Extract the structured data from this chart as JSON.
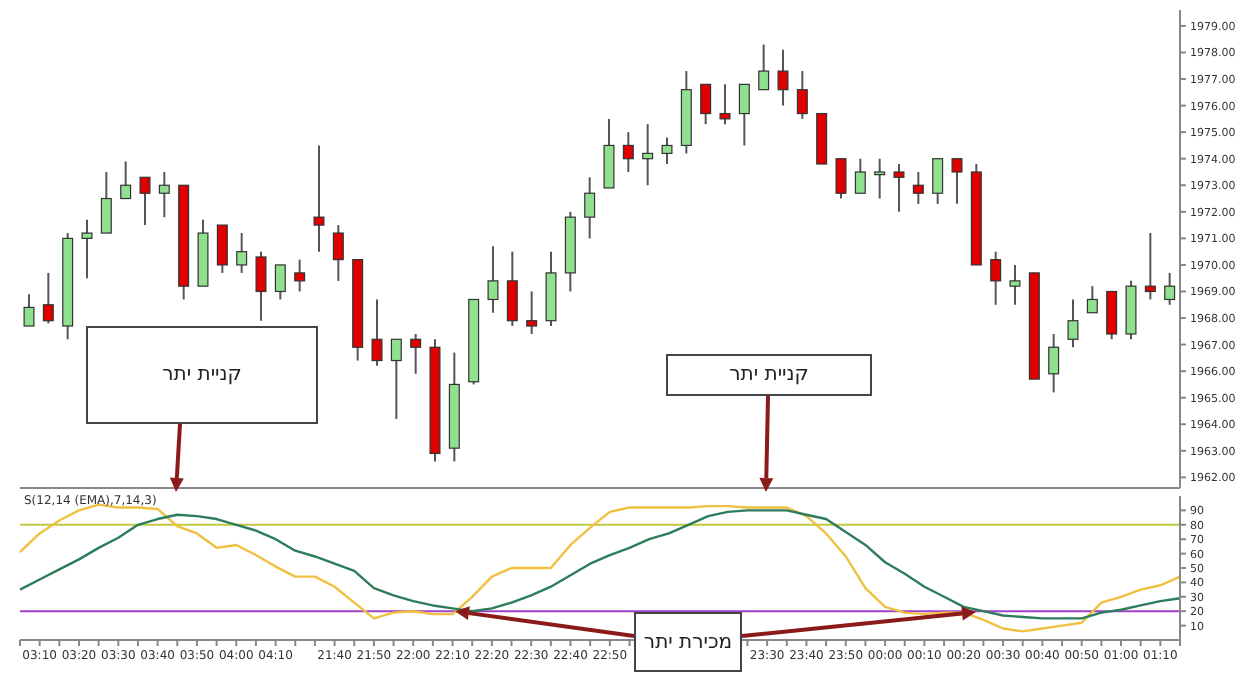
{
  "chart_data": [
    {
      "type": "candlestick",
      "categories": [
        null,
        null,
        null,
        null,
        null,
        null,
        null,
        null,
        null,
        null,
        null,
        null,
        null,
        null,
        null,
        null,
        null,
        null,
        null,
        null,
        null,
        null,
        null,
        null,
        null,
        null,
        null,
        null,
        null,
        null,
        null,
        null,
        null,
        null,
        null,
        null,
        null,
        null,
        null,
        null,
        null,
        null,
        null,
        null,
        null,
        null,
        null,
        null,
        null,
        null,
        null,
        null,
        null,
        null,
        null,
        null,
        null,
        null,
        null,
        null
      ],
      "ohlc": [
        [
          1967.7,
          1968.9,
          1967.7,
          1968.4
        ],
        [
          1968.5,
          1969.7,
          1967.8,
          1967.9
        ],
        [
          1967.7,
          1971.2,
          1967.2,
          1971.0
        ],
        [
          1971.0,
          1971.7,
          1969.5,
          1971.2
        ],
        [
          1971.2,
          1973.5,
          1971.2,
          1972.5
        ],
        [
          1972.5,
          1973.9,
          1972.5,
          1973.0
        ],
        [
          1973.3,
          1973.3,
          1971.5,
          1972.7
        ],
        [
          1972.7,
          1973.5,
          1971.8,
          1973.0
        ],
        [
          1973.0,
          1973.0,
          1968.7,
          1969.2
        ],
        [
          1969.2,
          1971.7,
          1969.2,
          1971.2
        ],
        [
          1971.5,
          1971.5,
          1969.7,
          1970.0
        ],
        [
          1970.0,
          1971.2,
          1969.7,
          1970.5
        ],
        [
          1970.3,
          1970.5,
          1967.9,
          1969.0
        ],
        [
          1969.0,
          1970.0,
          1968.7,
          1970.0
        ],
        [
          1969.7,
          1970.2,
          1969.0,
          1969.4
        ],
        [
          1971.8,
          1974.5,
          1970.5,
          1971.5
        ],
        [
          1971.2,
          1971.5,
          1969.4,
          1970.2
        ],
        [
          1970.2,
          1970.2,
          1966.4,
          1966.9
        ],
        [
          1967.2,
          1968.7,
          1966.2,
          1966.4
        ],
        [
          1966.4,
          1967.2,
          1964.2,
          1967.2
        ],
        [
          1967.2,
          1967.4,
          1965.9,
          1966.9
        ],
        [
          1966.9,
          1967.2,
          1962.6,
          1962.9
        ],
        [
          1963.1,
          1966.7,
          1962.6,
          1965.5
        ],
        [
          1965.6,
          1968.7,
          1965.5,
          1968.7
        ],
        [
          1968.7,
          1970.7,
          1968.2,
          1969.4
        ],
        [
          1969.4,
          1970.5,
          1967.7,
          1967.9
        ],
        [
          1967.9,
          1969.0,
          1967.4,
          1967.7
        ],
        [
          1967.9,
          1970.5,
          1967.7,
          1969.7
        ],
        [
          1969.7,
          1972.0,
          1969.0,
          1971.8
        ],
        [
          1971.8,
          1973.3,
          1971.0,
          1972.7
        ],
        [
          1972.9,
          1975.5,
          1972.9,
          1974.5
        ],
        [
          1974.5,
          1975.0,
          1973.5,
          1974.0
        ],
        [
          1974.0,
          1975.3,
          1973.0,
          1974.2
        ],
        [
          1974.2,
          1974.8,
          1973.8,
          1974.5
        ],
        [
          1974.5,
          1977.3,
          1974.2,
          1976.6
        ],
        [
          1976.8,
          1976.8,
          1975.3,
          1975.7
        ],
        [
          1975.7,
          1976.8,
          1975.3,
          1975.5
        ],
        [
          1975.7,
          1976.8,
          1974.5,
          1976.8
        ],
        [
          1976.6,
          1978.3,
          1976.6,
          1977.3
        ],
        [
          1977.3,
          1978.1,
          1976.0,
          1976.6
        ],
        [
          1976.6,
          1977.3,
          1975.5,
          1975.7
        ],
        [
          1975.7,
          1975.7,
          1973.8,
          1973.8
        ],
        [
          1974.0,
          1974.0,
          1972.5,
          1972.7
        ],
        [
          1972.7,
          1974.0,
          1972.7,
          1973.5
        ],
        [
          1973.4,
          1974.0,
          1972.5,
          1973.5
        ],
        [
          1973.5,
          1973.8,
          1972.0,
          1973.3
        ],
        [
          1973.0,
          1973.5,
          1972.3,
          1972.7
        ],
        [
          1972.7,
          1974.0,
          1972.3,
          1974.0
        ],
        [
          1974.0,
          1974.0,
          1972.3,
          1973.5
        ],
        [
          1973.5,
          1973.8,
          1970.0,
          1970.0
        ],
        [
          1970.2,
          1970.5,
          1968.5,
          1969.4
        ],
        [
          1969.2,
          1970.0,
          1968.5,
          1969.4
        ],
        [
          1969.7,
          1969.7,
          1965.7,
          1965.7
        ],
        [
          1965.9,
          1967.4,
          1965.2,
          1966.9
        ],
        [
          1967.2,
          1968.7,
          1966.9,
          1967.9
        ],
        [
          1968.2,
          1969.2,
          1968.2,
          1968.7
        ],
        [
          1969.0,
          1969.0,
          1967.2,
          1967.4
        ],
        [
          1967.4,
          1969.4,
          1967.2,
          1969.2
        ],
        [
          1969.2,
          1971.2,
          1968.7,
          1969.0
        ],
        [
          1968.7,
          1969.7,
          1968.5,
          1969.2
        ]
      ],
      "colors": [
        "#90e090",
        "#e00000",
        "#90e090",
        "#90e090",
        "#90e090",
        "#90e090",
        "#e00000",
        "#90e090",
        "#e00000",
        "#90e090",
        "#e00000",
        "#90e090",
        "#e00000",
        "#90e090",
        "#e00000",
        "#e00000",
        "#e00000",
        "#e00000",
        "#e00000",
        "#90e090",
        "#e00000",
        "#e00000",
        "#90e090",
        "#90e090",
        "#90e090",
        "#e00000",
        "#e00000",
        "#90e090",
        "#90e090",
        "#90e090",
        "#90e090",
        "#e00000",
        "#90e090",
        "#90e090",
        "#90e090",
        "#e00000",
        "#e00000",
        "#90e090",
        "#90e090",
        "#e00000",
        "#e00000",
        "#e00000",
        "#e00000",
        "#90e090",
        "#90e090",
        "#e00000",
        "#e00000",
        "#90e090",
        "#e00000",
        "#e00000",
        "#e00000",
        "#90e090",
        "#e00000",
        "#90e090",
        "#90e090",
        "#90e090",
        "#e00000",
        "#90e090",
        "#e00000",
        "#90e090"
      ],
      "ylim": [
        1961.6,
        1979.6
      ],
      "yticks": [
        {
          "value": 1962,
          "label": "1962.00"
        },
        {
          "value": 1963,
          "label": "1963.00"
        },
        {
          "value": 1964,
          "label": "1964.00"
        },
        {
          "value": 1965,
          "label": "1965.00"
        },
        {
          "value": 1966,
          "label": "1966.00"
        },
        {
          "value": 1967,
          "label": "1967.00"
        },
        {
          "value": 1968,
          "label": "1968.00"
        },
        {
          "value": 1969,
          "label": "1969.00"
        },
        {
          "value": 1970,
          "label": "1970.00"
        },
        {
          "value": 1971,
          "label": "1971.00"
        },
        {
          "value": 1972,
          "label": "1972.00"
        },
        {
          "value": 1973,
          "label": "1973.00"
        },
        {
          "value": 1974,
          "label": "1974.00"
        },
        {
          "value": 1975,
          "label": "1975.00"
        },
        {
          "value": 1976,
          "label": "1976.00"
        },
        {
          "value": 1977,
          "label": "1977.00"
        },
        {
          "value": 1978,
          "label": "1978.00"
        },
        {
          "value": 1979,
          "label": "1979.00"
        }
      ],
      "tick_labels": "y"
    },
    {
      "type": "line",
      "title": "S(12,14 (EMA),7,14,3)",
      "categories": [
        null,
        "03:10",
        null,
        "03:20",
        null,
        "03:30",
        null,
        "03:40",
        null,
        "03:50",
        null,
        "04:00",
        null,
        "04:10",
        null,
        null,
        "21:40",
        null,
        "21:50",
        null,
        "22:00",
        null,
        "22:10",
        null,
        "22:20",
        null,
        "22:30",
        null,
        "22:40",
        null,
        "22:50",
        null,
        null,
        null,
        null,
        null,
        null,
        null,
        "23:30",
        null,
        "23:40",
        null,
        "23:50",
        null,
        "00:00",
        null,
        "00:10",
        null,
        "00:20",
        null,
        "00:30",
        null,
        "00:40",
        null,
        "00:50",
        null,
        "01:00",
        null,
        "01:10",
        null
      ],
      "series": [
        {
          "color": "#f0c040",
          "values": [
            61,
            74,
            83,
            90,
            94,
            92,
            92,
            91,
            79,
            74,
            64,
            66,
            59,
            51,
            44,
            44,
            37,
            26,
            15,
            19,
            20,
            18,
            18,
            30,
            44,
            50,
            50,
            50,
            66,
            78,
            89,
            92,
            92,
            92,
            92,
            93,
            93,
            92,
            92,
            92,
            86,
            74,
            58,
            36,
            23,
            19,
            18,
            19,
            19,
            14,
            8,
            6,
            8,
            10,
            12,
            26,
            30,
            35,
            38,
            44
          ]
        },
        {
          "color": "#2e7d5a",
          "values": [
            35,
            42,
            49,
            56,
            64,
            71,
            80,
            84,
            87,
            86,
            84,
            80,
            76,
            70,
            62,
            58,
            53,
            48,
            36,
            31,
            27,
            24,
            22,
            20,
            22,
            26,
            31,
            37,
            45,
            53,
            59,
            64,
            70,
            74,
            80,
            86,
            89,
            90,
            90,
            90,
            87,
            84,
            75,
            66,
            54,
            46,
            37,
            30,
            23,
            20,
            17,
            16,
            15,
            15,
            15,
            19,
            21,
            24,
            27,
            29
          ]
        }
      ],
      "ylim": [
        0,
        100
      ],
      "yticks": [
        10,
        20,
        30,
        40,
        50,
        60,
        70,
        80,
        90
      ],
      "ref_lines": [
        {
          "axis": "y",
          "value": 80,
          "color": "#c0c840"
        },
        {
          "axis": "y",
          "value": 20,
          "color": "#a040c8"
        }
      ],
      "annotations": [
        "קניית יתר",
        "קניית יתר",
        {
          "text": "מכירת יתר",
          "x": "22:10",
          "y": 20
        }
      ]
    }
  ]
}
